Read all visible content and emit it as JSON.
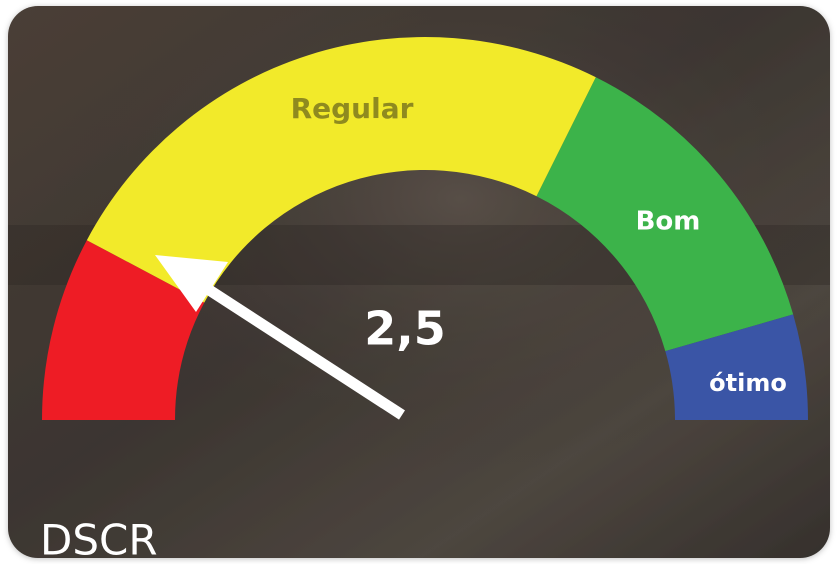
{
  "gauge": {
    "labels": [
      "Regular",
      "Bom",
      "ótimo"
    ],
    "reading": "2,5"
  },
  "title": "DSCR"
}
